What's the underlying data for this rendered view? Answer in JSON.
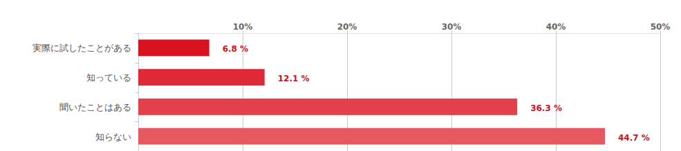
{
  "chart_data": {
    "type": "bar",
    "orientation": "horizontal",
    "categories": [
      "実際に試したことがある",
      "知っている",
      "聞いたことはある",
      "知らない"
    ],
    "values": [
      6.8,
      12.1,
      36.3,
      44.7
    ],
    "value_labels": [
      "6.8 %",
      "12.1 %",
      "36.3 %",
      "44.7 %"
    ],
    "colors": [
      "#d9121f",
      "#de2a36",
      "#e2404b",
      "#e65961"
    ],
    "xlim": [
      0,
      50
    ],
    "xticks": [
      {
        "value": 10,
        "label": "10%"
      },
      {
        "value": 20,
        "label": "20%"
      },
      {
        "value": 30,
        "label": "30%"
      },
      {
        "value": 40,
        "label": "40%"
      },
      {
        "value": 50,
        "label": "50%"
      }
    ],
    "grid": true,
    "data_labels": true
  }
}
